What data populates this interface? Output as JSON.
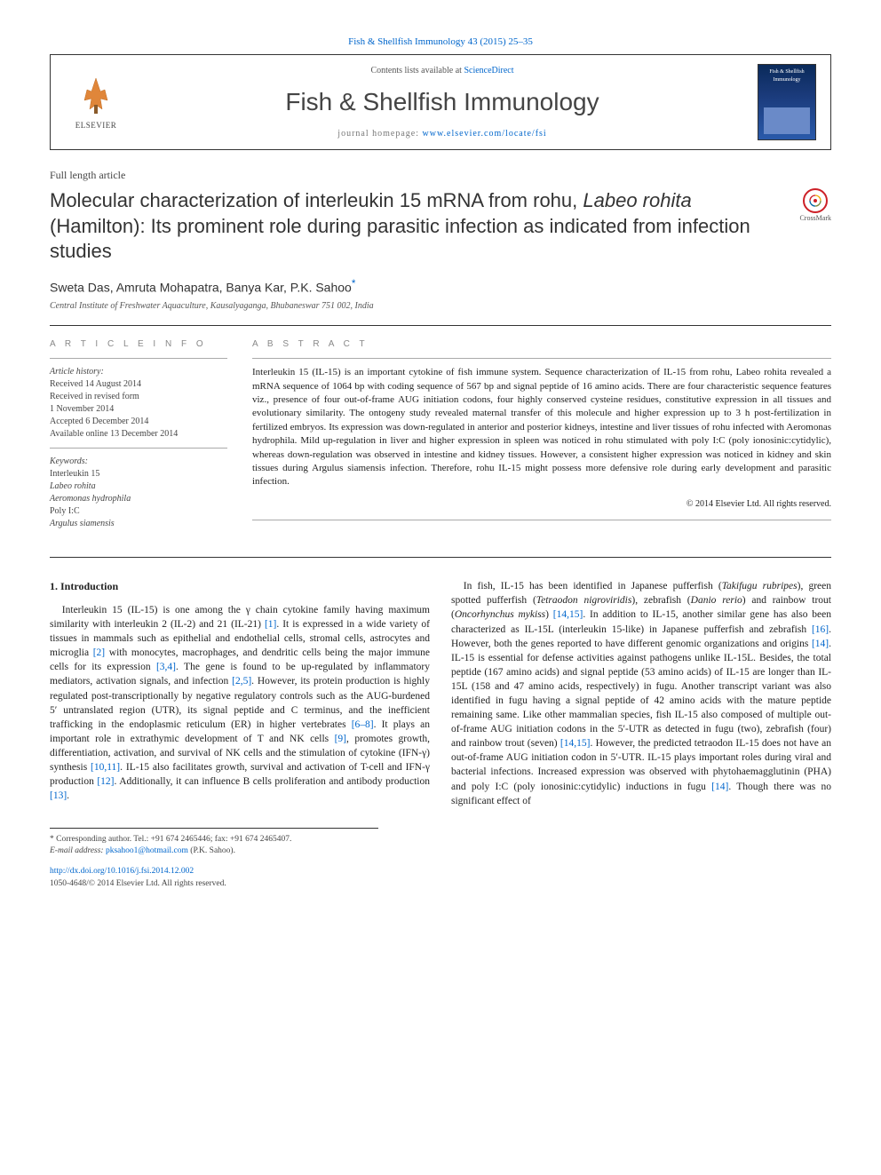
{
  "journal_ref": {
    "prefix": "",
    "link": "Fish & Shellfish Immunology 43 (2015) 25–35"
  },
  "header": {
    "contents_prefix": "Contents lists available at ",
    "contents_link": "ScienceDirect",
    "journal_title": "Fish & Shellfish Immunology",
    "homepage_prefix": "journal homepage: ",
    "homepage_link": "www.elsevier.com/locate/fsi",
    "elsevier_label": "ELSEVIER",
    "cover_title_small": "Fish & Shellfish Immunology"
  },
  "article_type": "Full length article",
  "title_html": "Molecular characterization of interleukin 15 mRNA from rohu, <em>Labeo rohita</em> (Hamilton): Its prominent role during parasitic infection as indicated from infection studies",
  "crossmark_label": "CrossMark",
  "authors": "Sweta Das, Amruta Mohapatra, Banya Kar, P.K. Sahoo",
  "corr_mark": "*",
  "affiliation": "Central Institute of Freshwater Aquaculture, Kausalyaganga, Bhubaneswar 751 002, India",
  "article_info": {
    "heading": "A R T I C L E  I N F O",
    "history_label": "Article history:",
    "history": [
      "Received 14 August 2014",
      "Received in revised form",
      "1 November 2014",
      "Accepted 6 December 2014",
      "Available online 13 December 2014"
    ],
    "keywords_label": "Keywords:",
    "keywords_html": [
      "Interleukin 15",
      "<em>Labeo rohita</em>",
      "<em>Aeromonas hydrophila</em>",
      "Poly I:C",
      "<em>Argulus siamensis</em>"
    ]
  },
  "abstract": {
    "heading": "A B S T R A C T",
    "text": "Interleukin 15 (IL-15) is an important cytokine of fish immune system. Sequence characterization of IL-15 from rohu, Labeo rohita revealed a mRNA sequence of 1064 bp with coding sequence of 567 bp and signal peptide of 16 amino acids. There are four characteristic sequence features viz., presence of four out-of-frame AUG initiation codons, four highly conserved cysteine residues, constitutive expression in all tissues and evolutionary similarity. The ontogeny study revealed maternal transfer of this molecule and higher expression up to 3 h post-fertilization in fertilized embryos. Its expression was down-regulated in anterior and posterior kidneys, intestine and liver tissues of rohu infected with Aeromonas hydrophila. Mild up-regulation in liver and higher expression in spleen was noticed in rohu stimulated with poly I:C (poly ionosinic:cytidylic), whereas down-regulation was observed in intestine and kidney tissues. However, a consistent higher expression was noticed in kidney and skin tissues during Argulus siamensis infection. Therefore, rohu IL-15 might possess more defensive role during early development and parasitic infection.",
    "copyright": "© 2014 Elsevier Ltd. All rights reserved."
  },
  "body": {
    "section_heading": "1. Introduction",
    "p1_html": "Interleukin 15 (IL-15) is one among the γ chain cytokine family having maximum similarity with interleukin 2 (IL-2) and 21 (IL-21) <span class='ref'>[1]</span>. It is expressed in a wide variety of tissues in mammals such as epithelial and endothelial cells, stromal cells, astrocytes and microglia <span class='ref'>[2]</span> with monocytes, macrophages, and dendritic cells being the major immune cells for its expression <span class='ref'>[3,4]</span>. The gene is found to be up-regulated by inflammatory mediators, activation signals, and infection <span class='ref'>[2,5]</span>. However, its protein production is highly regulated post-transcriptionally by negative regulatory controls such as the AUG-burdened 5′ untranslated region (UTR), its signal peptide and C terminus, and the inefficient trafficking in the endoplasmic reticulum (ER) in higher vertebrates <span class='ref'>[6–8]</span>. It plays an important role in extrathymic development of T and NK cells <span class='ref'>[9]</span>, promotes growth, differentiation, activation, and survival of NK cells and the stimulation of cytokine (IFN-γ) synthesis <span class='ref'>[10,11]</span>. IL-15 also facilitates growth, survival and activation of T-cell and IFN-γ production <span class='ref'>[12]</span>. Additionally, it can influence B cells proliferation and antibody production <span class='ref'>[13]</span>.",
    "p2_html": "In fish, IL-15 has been identified in Japanese pufferfish (<em>Takifugu rubripes</em>), green spotted pufferfish (<em>Tetraodon nigroviridis</em>), zebrafish (<em>Danio rerio</em>) and rainbow trout (<em>Oncorhynchus mykiss</em>) <span class='ref'>[14,15]</span>. In addition to IL-15, another similar gene has also been characterized as IL-15L (interleukin 15-like) in Japanese pufferfish and zebrafish <span class='ref'>[16]</span>. However, both the genes reported to have different genomic organizations and origins <span class='ref'>[14]</span>. IL-15 is essential for defense activities against pathogens unlike IL-15L. Besides, the total peptide (167 amino acids) and signal peptide (53 amino acids) of IL-15 are longer than IL-15L (158 and 47 amino acids, respectively) in fugu. Another transcript variant was also identified in fugu having a signal peptide of 42 amino acids with the mature peptide remaining same. Like other mammalian species, fish IL-15 also composed of multiple out-of-frame AUG initiation codons in the 5′-UTR as detected in fugu (two), zebrafish (four) and rainbow trout (seven) <span class='ref'>[14,15]</span>. However, the predicted tetraodon IL-15 does not have an out-of-frame AUG initiation codon in 5′-UTR. IL-15 plays important roles during viral and bacterial infections. Increased expression was observed with phytohaemagglutinin (PHA) and poly I:C (poly ionosinic:cytidylic) inductions in fugu <span class='ref'>[14]</span>. Though there was no significant effect of"
  },
  "footnote": {
    "corr": "* Corresponding author. Tel.: +91 674 2465446; fax: +91 674 2465407.",
    "email_label": "E-mail address: ",
    "email": "pksahoo1@hotmail.com",
    "email_who": " (P.K. Sahoo)."
  },
  "footer": {
    "doi": "http://dx.doi.org/10.1016/j.fsi.2014.12.002",
    "issn_line": "1050-4648/© 2014 Elsevier Ltd. All rights reserved."
  },
  "colors": {
    "link": "#0066cc",
    "text": "#222222",
    "rule": "#333333",
    "crossmark_ring": "#cd2027"
  }
}
